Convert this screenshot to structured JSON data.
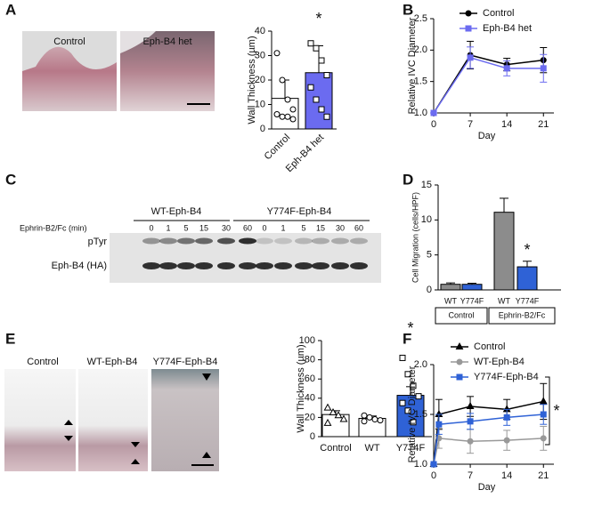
{
  "panels": [
    "A",
    "B",
    "C",
    "D",
    "E",
    "F"
  ],
  "micrographs": {
    "a": [
      "Control",
      "Eph-B4 het"
    ],
    "e": [
      "Control",
      "WT-Eph-B4",
      "Y774F-Eph-B4"
    ]
  },
  "blot": {
    "groups": [
      "WT-Eph-B4",
      "Y774F-Eph-B4"
    ],
    "treatment": "Ephrin-B2/Fc (min)",
    "times": [
      "0",
      "1",
      "5",
      "15",
      "30",
      "60",
      "0",
      "1",
      "5",
      "15",
      "30",
      "60"
    ],
    "rows": [
      "pTyr",
      "Eph-B4 (HA)"
    ]
  },
  "chart_data": [
    {
      "type": "bar",
      "y_label": "Wall Thickness (µm)",
      "categories": [
        "Control",
        "Eph-B4 het"
      ],
      "values": [
        12.5,
        23
      ],
      "errors": [
        7.5,
        11
      ],
      "colors": [
        "#ffffff",
        "#6b6bf0"
      ],
      "points": [
        [
          31,
          20,
          12,
          8,
          6,
          5,
          5,
          4
        ],
        [
          35,
          33,
          28,
          22,
          17,
          12,
          8,
          5
        ]
      ],
      "point_markers": [
        "circle",
        "square"
      ],
      "ylim": [
        0,
        40
      ],
      "yticks": [
        0,
        10,
        20,
        30,
        40
      ],
      "annotation": "*"
    },
    {
      "type": "line",
      "x_label": "Day",
      "y_label": "Relative IVC Diameter",
      "x": [
        0,
        7,
        14,
        21
      ],
      "series": [
        {
          "name": "Control",
          "color": "#000000",
          "marker": "circle",
          "values": [
            1.0,
            1.92,
            1.77,
            1.84
          ],
          "errors": [
            0,
            0.22,
            0.1,
            0.2
          ]
        },
        {
          "name": "Eph-B4 het",
          "color": "#6b6bf0",
          "marker": "square",
          "values": [
            1.0,
            1.88,
            1.71,
            1.71
          ],
          "errors": [
            0,
            0.17,
            0.12,
            0.22
          ]
        }
      ],
      "xlim": [
        0,
        23
      ],
      "xticks": [
        0,
        7,
        14,
        21
      ],
      "ylim": [
        1.0,
        2.5
      ],
      "yticks": [
        {
          "value": 1.0,
          "label": "1.0"
        },
        {
          "value": 1.5,
          "label": "1.5"
        },
        {
          "value": 2.0,
          "label": "2.0"
        },
        {
          "value": 2.5,
          "label": "2.5"
        }
      ]
    },
    {
      "type": "bar",
      "y_label": "Cell Migration (cells/HPF)",
      "categories": [
        "WT",
        "Y774F",
        "WT",
        "Y774F"
      ],
      "group_labels": [
        "Control",
        "Ephrin-B2/Fc"
      ],
      "values": [
        0.8,
        0.8,
        11.1,
        3.3
      ],
      "errors": [
        0.2,
        0.15,
        2.0,
        0.8
      ],
      "colors": [
        "#8c8c8c",
        "#2f62d6",
        "#8c8c8c",
        "#2f62d6"
      ],
      "ylim": [
        0,
        15
      ],
      "yticks": [
        0,
        5,
        10,
        15
      ],
      "annotation": "*"
    },
    {
      "type": "bar",
      "y_label": "Wall Thickness (µm)",
      "categories": [
        "Control",
        "WT",
        "Y774F"
      ],
      "values": [
        23,
        19,
        43
      ],
      "errors": [
        4,
        2.5,
        9
      ],
      "colors": [
        "#ffffff",
        "#ffffff",
        "#2f62d6"
      ],
      "points": [
        [
          30,
          25,
          22,
          18,
          14
        ],
        [
          22,
          20,
          18,
          17,
          16
        ],
        [
          82,
          65,
          53,
          42,
          35,
          27,
          15
        ]
      ],
      "point_markers": [
        "triangle",
        "circle",
        "square"
      ],
      "ylim": [
        0,
        100
      ],
      "yticks": [
        0,
        20,
        40,
        60,
        80,
        100
      ],
      "annotation": "*"
    },
    {
      "type": "line",
      "x_label": "Day",
      "y_label": "Relative IVC Diameter",
      "x": [
        0,
        1,
        7,
        14,
        21
      ],
      "series": [
        {
          "name": "Control",
          "color": "#000000",
          "marker": "triangle",
          "values": [
            1.0,
            1.5,
            1.58,
            1.55,
            1.63
          ],
          "errors": [
            0,
            0.15,
            0.1,
            0.1,
            0.18
          ]
        },
        {
          "name": "WT-Eph-B4",
          "color": "#999999",
          "marker": "circle",
          "values": [
            1.0,
            1.26,
            1.23,
            1.24,
            1.26
          ],
          "errors": [
            0,
            0.1,
            0.12,
            0.1,
            0.12
          ]
        },
        {
          "name": "Y774F-Eph-B4",
          "color": "#2f62d6",
          "marker": "square",
          "values": [
            1.0,
            1.4,
            1.43,
            1.47,
            1.5
          ],
          "errors": [
            0,
            0.1,
            0.08,
            0.08,
            0.1
          ]
        }
      ],
      "xlim": [
        0,
        23
      ],
      "xticks": [
        0,
        7,
        14,
        21
      ],
      "ylim": [
        1.0,
        2.0
      ],
      "yticks": [
        {
          "value": 1.0,
          "label": "1.0"
        },
        {
          "value": 1.5,
          "label": "1.5"
        },
        {
          "value": 2.0,
          "label": "2.0"
        }
      ],
      "annotation": "*"
    }
  ]
}
